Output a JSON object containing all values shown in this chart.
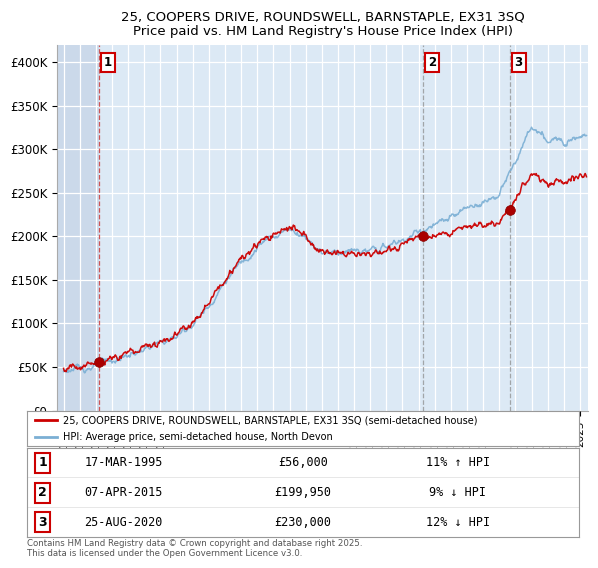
{
  "title_line1": "25, COOPERS DRIVE, ROUNDSWELL, BARNSTAPLE, EX31 3SQ",
  "title_line2": "Price paid vs. HM Land Registry's House Price Index (HPI)",
  "legend_label1": "25, COOPERS DRIVE, ROUNDSWELL, BARNSTAPLE, EX31 3SQ (semi-detached house)",
  "legend_label2": "HPI: Average price, semi-detached house, North Devon",
  "transactions": [
    {
      "num": 1,
      "date_str": "17-MAR-1995",
      "year": 1995.21,
      "price": 56000,
      "pct": "11% ↑ HPI"
    },
    {
      "num": 2,
      "date_str": "07-APR-2015",
      "year": 2015.27,
      "price": 199950,
      "pct": "9% ↓ HPI"
    },
    {
      "num": 3,
      "date_str": "25-AUG-2020",
      "year": 2020.65,
      "price": 230000,
      "pct": "12% ↓ HPI"
    }
  ],
  "footer": "Contains HM Land Registry data © Crown copyright and database right 2025.\nThis data is licensed under the Open Government Licence v3.0.",
  "ylim": [
    0,
    420000
  ],
  "yticks": [
    0,
    50000,
    100000,
    150000,
    200000,
    250000,
    300000,
    350000,
    400000
  ],
  "ytick_labels": [
    "£0",
    "£50K",
    "£100K",
    "£150K",
    "£200K",
    "£250K",
    "£300K",
    "£350K",
    "£400K"
  ],
  "xlim_start": 1992.6,
  "xlim_end": 2025.5,
  "background_color": "#dce9f5",
  "hatch_color": "#c0d0e4",
  "grid_color": "#ffffff",
  "line_color_red": "#cc0000",
  "line_color_blue": "#7bafd4",
  "marker_color_red": "#aa0000",
  "transaction_line_color_red": "#cc4444",
  "transaction_line_color_gray": "#888888",
  "table_border_color": "#cc0000",
  "fig_width": 6.0,
  "fig_height": 5.9
}
